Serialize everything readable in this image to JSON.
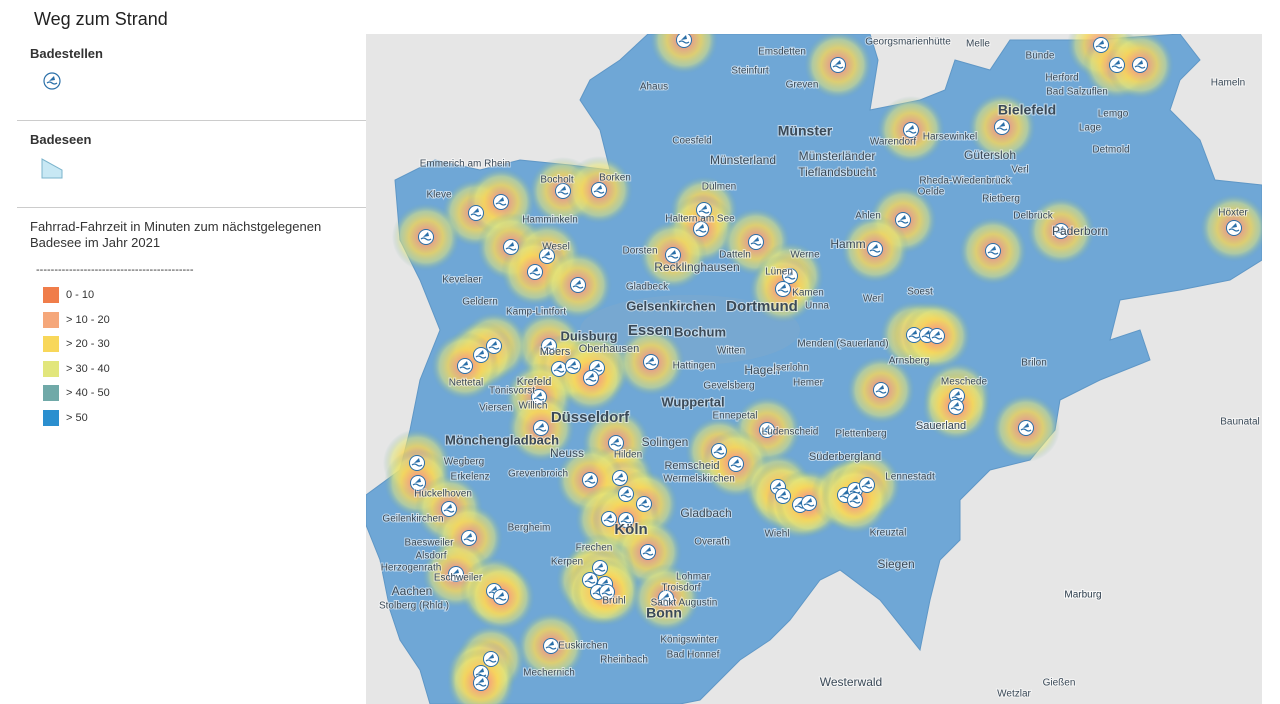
{
  "header": {
    "title": "Weg zum Strand"
  },
  "legend": {
    "badestellen": {
      "title": "Badestellen"
    },
    "badeseen": {
      "title": "Badeseen"
    },
    "travel_time": {
      "title": "Fahrrad-Fahrzeit in Minuten zum nächstgelegenen Badesee im Jahr 2021",
      "separator": "-------------------------------------------",
      "items": [
        {
          "label": "0 - 10",
          "color": "#f07d4a"
        },
        {
          "label": "> 10 - 20",
          "color": "#f5a77a"
        },
        {
          "label": "> 20 - 30",
          "color": "#f8d75a"
        },
        {
          "label": "> 30 - 40",
          "color": "#e2e67c"
        },
        {
          "label": "> 40 - 50",
          "color": "#70a9a8"
        },
        {
          "label": "> 50",
          "color": "#2b8fcf"
        }
      ]
    }
  },
  "map": {
    "labels": [
      "Münster",
      "Bielefeld",
      "Gelsenkirchen",
      "Dortmund",
      "Essen",
      "Bochum",
      "Duisburg",
      "Oberhausen",
      "Düsseldorf",
      "Wuppertal",
      "Köln",
      "Bonn",
      "Mönchengladbach",
      "Aachen",
      "Siegen",
      "Hagen",
      "Recklinghausen",
      "Hamm",
      "Paderborn",
      "Gütersloh",
      "Solingen",
      "Remscheid",
      "Neuss",
      "Krefeld",
      "Moers",
      "Münsterland",
      "Münsterländer",
      "Tieflandsbucht",
      "Sauerland",
      "Süderbergland",
      "Westerwald",
      "Marburg",
      "Lennestadt",
      "Arnsberg",
      "Soest",
      "Hameln",
      "Lemgo",
      "Detmold",
      "Herford",
      "Wesel",
      "Kleve",
      "Bocholt",
      "Borken",
      "Dülmen",
      "Coesfeld",
      "Steinfurt",
      "Ahaus",
      "Emsdetten",
      "Greven",
      "Warendorf",
      "Unna",
      "Iserlohn",
      "Lüdenscheid",
      "Kreuztal",
      "Euskirchen",
      "Rheinbach",
      "Viersen",
      "Stolberg (Rhld.)",
      "Herzogenrath",
      "Geldern",
      "Kevelaer",
      "Kamp-Lintfort",
      "Witten",
      "Hattingen",
      "Gevelsberg",
      "Hilden",
      "Kerpen",
      "Frechen",
      "Brühl",
      "Sankt Augustin",
      "Troisdorf",
      "Königswinter",
      "Bad Honnef",
      "Overath",
      "Wiehl",
      "Plettenberg",
      "Meschede",
      "Brilon",
      "Menden (Sauerland)",
      "Werl",
      "Ahlen",
      "Rheda-Wiedenbrück",
      "Oelde",
      "Rietberg",
      "Delbrück",
      "Höxter",
      "Bad Salzuflen",
      "Bünde",
      "Melle",
      "Georgsmarienhütte",
      "Lage",
      "Werne",
      "Lünen",
      "Kamen",
      "Datteln",
      "Haltern am See",
      "Dorsten",
      "Gladbeck",
      "Emmerich am Rhein",
      "Hamminkeln",
      "Nettetal",
      "Tönisvorst",
      "Willich",
      "Grevenbroich",
      "Erkelenz",
      "Hückelhoven",
      "Wegberg",
      "Geilenkirchen",
      "Baesweiler",
      "Alsdorf",
      "Eschweiler",
      "Bergheim",
      "Mechernich",
      "Wermelskirchen",
      "Ennepetal",
      "Verl",
      "Harsewinkel",
      "Hemer",
      "Marburg",
      "Gießen",
      "Wetzlar",
      "Baunatal",
      "Lohmar",
      "Gladbach",
      "Sauerland"
    ]
  }
}
